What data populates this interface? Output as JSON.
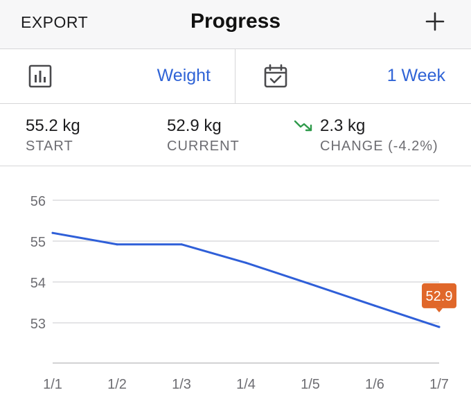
{
  "nav": {
    "export_label": "EXPORT",
    "title": "Progress",
    "add_icon": "plus-icon"
  },
  "selectors": {
    "metric": {
      "icon": "bar-chart-icon",
      "value": "Weight"
    },
    "range": {
      "icon": "calendar-check-icon",
      "value": "1 Week"
    }
  },
  "stats": {
    "start": {
      "value": "55.2 kg",
      "label": "START"
    },
    "current": {
      "value": "52.9 kg",
      "label": "CURRENT"
    },
    "change": {
      "value": "2.3 kg",
      "label": "CHANGE (-4.2%)",
      "icon": "trending-down-icon"
    }
  },
  "colors": {
    "accent": "#2f63d6",
    "line": "#2f5fd8",
    "trend_down": "#2e9a4a",
    "callout": "#e0672a"
  },
  "chart_data": {
    "type": "line",
    "categories": [
      "1/1",
      "1/2",
      "1/3",
      "1/4",
      "1/5",
      "1/6",
      "1/7"
    ],
    "series": [
      {
        "values": [
          55.2,
          54.92,
          54.92,
          54.47,
          53.95,
          53.42,
          52.9
        ]
      }
    ],
    "yticks": [
      53,
      54,
      55,
      56
    ],
    "ylim": [
      52,
      56
    ],
    "grid": true,
    "callout": {
      "index": 6,
      "label": "52.9"
    }
  }
}
